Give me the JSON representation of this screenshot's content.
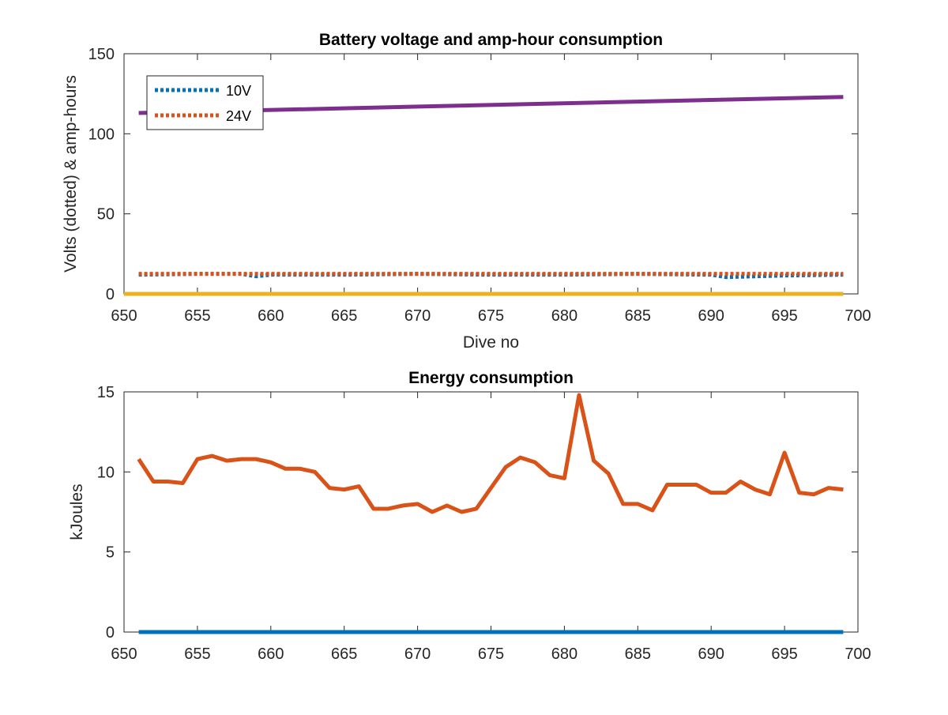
{
  "chart_data": [
    {
      "type": "line",
      "title": "Battery voltage and amp-hour consumption",
      "xlabel": "Dive no",
      "ylabel": "Volts (dotted) & amp-hours",
      "xlim": [
        650,
        700
      ],
      "ylim": [
        0,
        150
      ],
      "xticks": [
        650,
        655,
        660,
        665,
        670,
        675,
        680,
        685,
        690,
        695,
        700
      ],
      "yticks": [
        0,
        50,
        100,
        150
      ],
      "grid": false,
      "legend": {
        "placement": "top-left",
        "entries": [
          "10V",
          "24V"
        ]
      },
      "series": [
        {
          "name": "10V",
          "style": "dotted",
          "color": "#0072BD",
          "x": [
            651,
            655,
            658,
            659,
            660,
            665,
            670,
            675,
            680,
            685,
            690,
            691,
            695,
            699
          ],
          "y": [
            12,
            12.5,
            12.5,
            11,
            12,
            12,
            12.5,
            12,
            12,
            12.5,
            12,
            10.5,
            11.5,
            12
          ]
        },
        {
          "name": "24V",
          "style": "dotted",
          "color": "#D95319",
          "x": [
            651,
            699
          ],
          "y": [
            12.5,
            12.5
          ]
        },
        {
          "style": "solid",
          "color": "#7E2F8E",
          "x": [
            651,
            699
          ],
          "y": [
            113,
            123
          ]
        },
        {
          "style": "solid",
          "color": "#EDB120",
          "x": [
            650,
            699
          ],
          "y": [
            0,
            0
          ]
        }
      ]
    },
    {
      "type": "line",
      "title": "Energy consumption",
      "xlabel": "",
      "ylabel": "kJoules",
      "xlim": [
        650,
        700
      ],
      "ylim": [
        0,
        15
      ],
      "xticks": [
        650,
        655,
        660,
        665,
        670,
        675,
        680,
        685,
        690,
        695,
        700
      ],
      "yticks": [
        0,
        5,
        10,
        15
      ],
      "grid": false,
      "series": [
        {
          "style": "solid",
          "color": "#0072BD",
          "x": [
            651,
            699
          ],
          "y": [
            0,
            0
          ]
        },
        {
          "style": "solid",
          "color": "#D95319",
          "x": [
            651,
            652,
            653,
            654,
            655,
            656,
            657,
            658,
            659,
            660,
            661,
            662,
            663,
            664,
            665,
            666,
            667,
            668,
            669,
            670,
            671,
            672,
            673,
            674,
            675,
            676,
            677,
            678,
            679,
            680,
            681,
            682,
            683,
            684,
            685,
            686,
            687,
            688,
            689,
            690,
            691,
            692,
            693,
            694,
            695,
            696,
            697,
            698,
            699
          ],
          "y": [
            10.8,
            9.4,
            9.4,
            9.3,
            10.8,
            11.0,
            10.7,
            10.8,
            10.8,
            10.6,
            10.2,
            10.2,
            10.0,
            9.0,
            8.9,
            9.1,
            7.7,
            7.7,
            7.9,
            8.0,
            7.5,
            7.9,
            7.5,
            7.7,
            9.0,
            10.3,
            10.9,
            10.6,
            9.8,
            9.6,
            14.8,
            10.7,
            9.9,
            8.0,
            8.0,
            7.6,
            9.2,
            9.2,
            9.2,
            8.7,
            8.7,
            9.4,
            8.9,
            8.6,
            11.2,
            8.7,
            8.6,
            9.0,
            8.9
          ]
        }
      ]
    }
  ]
}
